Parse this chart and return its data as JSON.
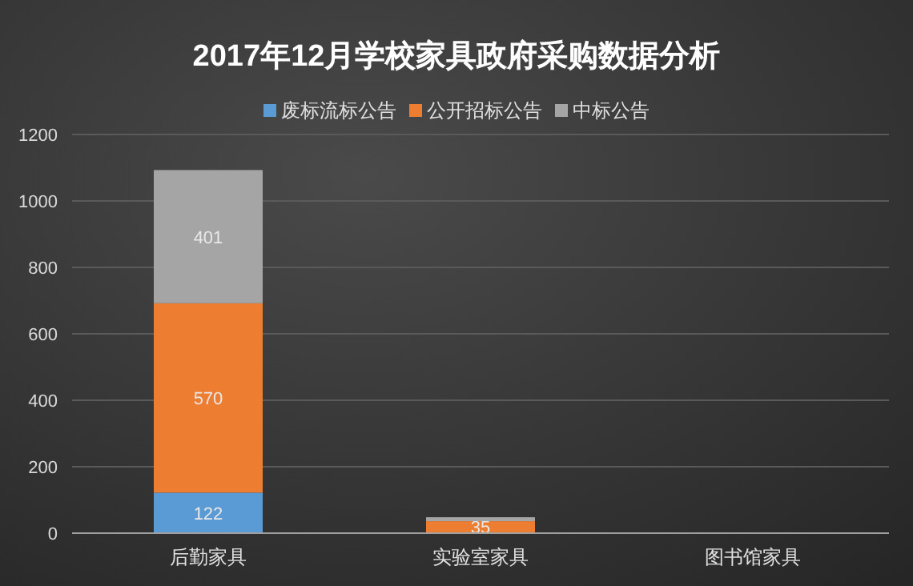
{
  "chart_data": {
    "type": "bar",
    "title": "2017年12月学校家具政府采购数据分析",
    "stacked": true,
    "categories": [
      "后勤家具",
      "实验室家具",
      "图书馆家具"
    ],
    "series": [
      {
        "name": "废标流标公告",
        "color": "#5b9bd5",
        "values": [
          122,
          1,
          0
        ],
        "value_labels": [
          "122",
          null,
          null
        ]
      },
      {
        "name": "公开招标公告",
        "color": "#ed7d31",
        "values": [
          570,
          35,
          null
        ],
        "value_labels": [
          "570",
          "35",
          null
        ]
      },
      {
        "name": "中标公告",
        "color": "#a5a5a5",
        "values": [
          401,
          12,
          2
        ],
        "value_labels": [
          "401",
          null,
          null
        ]
      }
    ],
    "ylim": [
      0,
      1200
    ],
    "yticks": [
      0,
      200,
      400,
      600,
      800,
      1000,
      1200
    ],
    "grid": "y",
    "legend": "top"
  }
}
